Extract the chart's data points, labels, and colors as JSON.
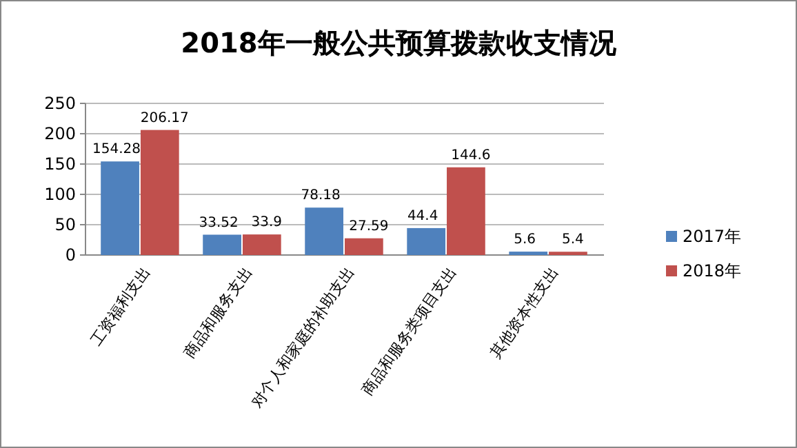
{
  "chart_data": {
    "type": "bar",
    "title": "2018年一般公共预算拨款收支情况",
    "categories": [
      "工资福利支出",
      "商品和服务支出",
      "对个人和家庭的补助支出",
      "商品和服务类项目支出",
      "其他资本性支出"
    ],
    "series": [
      {
        "name": "2017年",
        "color": "#4f81bd",
        "values": [
          154.28,
          33.52,
          78.18,
          44.4,
          5.6
        ]
      },
      {
        "name": "2018年",
        "color": "#c0504d",
        "values": [
          206.17,
          33.9,
          27.59,
          144.6,
          5.4
        ]
      }
    ],
    "ylim": [
      0,
      250
    ],
    "yticks": [
      0,
      50,
      100,
      150,
      200,
      250
    ],
    "grid": "y",
    "legend": "right",
    "data_labels": true
  }
}
